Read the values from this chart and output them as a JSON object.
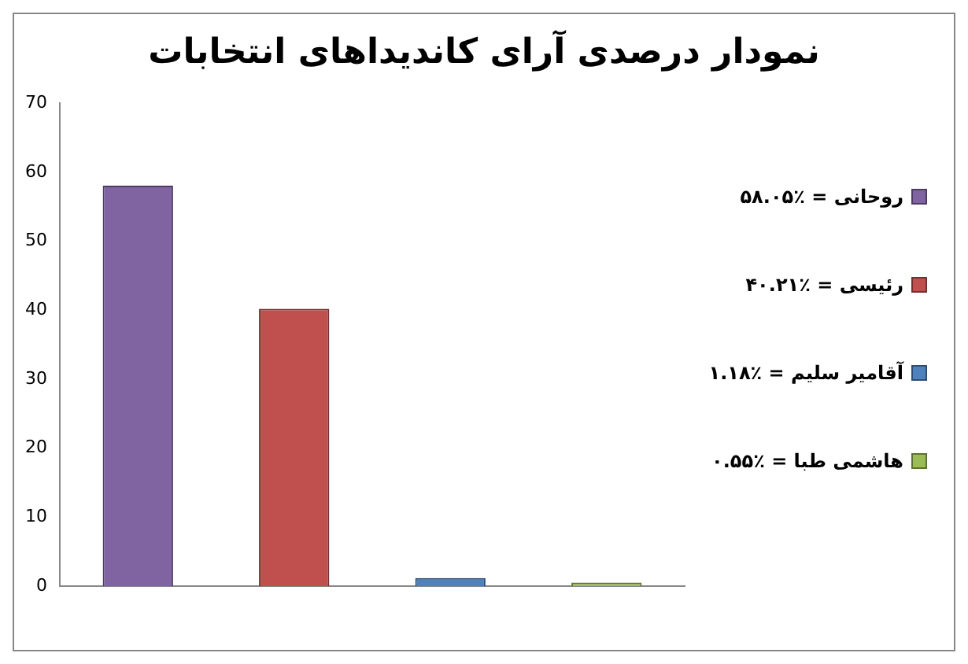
{
  "chart_data": {
    "type": "bar",
    "title": "نمودار درصدی آرای کاندیداهای انتخابات",
    "categories": [
      null,
      null,
      null,
      null
    ],
    "series": [
      {
        "name": "روحانی = ٪۵۸.۰۵",
        "color": "#8064a2",
        "values": [
          58.05,
          null,
          null,
          null
        ]
      },
      {
        "name": "رئیسی = ٪۴۰.۲۱",
        "color": "#c0504d",
        "values": [
          null,
          40.21,
          null,
          null
        ]
      },
      {
        "name": "آقامیر سلیم = ٪۱.۱۸",
        "color": "#4f81bd",
        "values": [
          null,
          null,
          1.18,
          null
        ]
      },
      {
        "name": "هاشمی طبا = ٪۰.۵۵",
        "color": "#9bbb59",
        "values": [
          null,
          null,
          null,
          0.55
        ]
      }
    ],
    "ylim": [
      0,
      70
    ],
    "yticks": [
      0,
      10,
      20,
      30,
      40,
      50,
      60,
      70
    ],
    "grid": false,
    "legend": "right"
  }
}
